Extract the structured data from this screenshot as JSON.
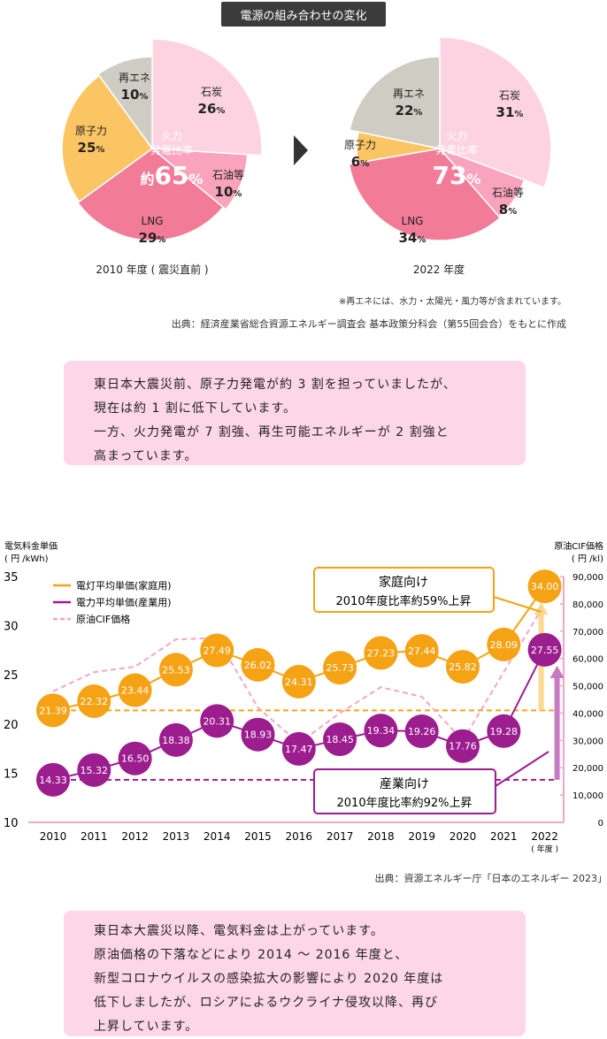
{
  "header": {
    "title": "電源の組み合わせの変化"
  },
  "pies": [
    {
      "caption": "2010 年度 ( 震災直前 )",
      "center_label_1": "火力",
      "center_label_2": "発電比率",
      "center_prefix": "約",
      "center_value": "65",
      "center_unit": "%",
      "slices": [
        {
          "name": "石炭",
          "value": 26,
          "value_label": "26",
          "color": "#fdd3e2"
        },
        {
          "name": "石油等",
          "value": 10,
          "value_label": "10",
          "color": "#f9a3bd"
        },
        {
          "name": "LNG",
          "value": 29,
          "value_label": "29",
          "color": "#f27b98"
        },
        {
          "name": "原子力",
          "value": 25,
          "value_label": "25",
          "color": "#fcc564"
        },
        {
          "name": "再エネ",
          "value": 10,
          "value_label": "10",
          "color": "#cfccc4"
        }
      ]
    },
    {
      "caption": "2022 年度",
      "center_label_1": "火力",
      "center_label_2": "発電比率",
      "center_prefix": "",
      "center_value": "73",
      "center_unit": "%",
      "slices": [
        {
          "name": "石炭",
          "value": 31,
          "value_label": "31",
          "color": "#fdd3e2"
        },
        {
          "name": "石油等",
          "value": 8,
          "value_label": "8",
          "color": "#f9a3bd"
        },
        {
          "name": "LNG",
          "value": 34,
          "value_label": "34",
          "color": "#f27b98"
        },
        {
          "name": "原子力",
          "value": 6,
          "value_label": "6",
          "color": "#fcc564"
        },
        {
          "name": "再エネ",
          "value": 22,
          "value_label": "22",
          "color": "#cfccc4"
        }
      ]
    }
  ],
  "pie_unit": "%",
  "notes": {
    "renewables": "※再エネには、水力・太陽光・風力等が含まれています。",
    "source1": "出典：経済産業省総合資源エネルギー調査会 基本政策分科会（第55回会合）をもとに作成",
    "source2": "出典：資源エネルギー庁「日本のエネルギー 2023」"
  },
  "box1": {
    "lines": [
      "東日本大震災前、原子力発電が約 3 割を担っていましたが、",
      "現在は約 1 割に低下しています。",
      "一方、火力発電が 7 割強、再生可能エネルギーが 2 割強と",
      "高まっています。"
    ]
  },
  "box2": {
    "lines": [
      "東日本大震災以降、電気料金は上がっています。",
      "原油価格の下落などにより 2014 ～ 2016 年度と、",
      "新型コロナウイルスの感染拡大の影響により 2020 年度は",
      "低下しましたが、ロシアによるウクライナ侵攻以降、再び",
      "上昇しています。"
    ]
  },
  "chart_data": {
    "type": "line",
    "ylabel_left_1": "電気料金単価",
    "ylabel_left_2": "( 円 /kWh)",
    "ylabel_right_1": "原油CIF価格",
    "ylabel_right_2": "( 円 /kl)",
    "xunit": "( 年度 )",
    "x": [
      "2010",
      "2011",
      "2012",
      "2013",
      "2014",
      "2015",
      "2016",
      "2017",
      "2018",
      "2019",
      "2020",
      "2021",
      "2022"
    ],
    "ylim_left": [
      10,
      35
    ],
    "yticks_left": [
      "10",
      "15",
      "20",
      "25",
      "30",
      "35"
    ],
    "ylim_right": [
      0,
      90000
    ],
    "yticks_right": [
      "0",
      "10,000",
      "20,000",
      "30,000",
      "40,000",
      "50,000",
      "60,000",
      "70,000",
      "80,000",
      "90,000"
    ],
    "series": [
      {
        "name": "電灯平均単価(家庭用)",
        "color": "#f5a315",
        "values": [
          21.39,
          22.32,
          23.44,
          25.53,
          27.49,
          26.02,
          24.31,
          25.73,
          27.23,
          27.44,
          25.82,
          28.09,
          34.0
        ],
        "labels": [
          "21.39",
          "22.32",
          "23.44",
          "25.53",
          "27.49",
          "26.02",
          "24.31",
          "25.73",
          "27.23",
          "27.44",
          "25.82",
          "28.09",
          "34.00"
        ]
      },
      {
        "name": "電力平均単価(産業用)",
        "color": "#9c1d8e",
        "values": [
          14.33,
          15.32,
          16.5,
          18.38,
          20.31,
          18.93,
          17.47,
          18.45,
          19.34,
          19.26,
          17.76,
          19.28,
          27.55
        ],
        "labels": [
          "14.33",
          "15.32",
          "16.50",
          "18.38",
          "20.31",
          "18.93",
          "17.47",
          "18.45",
          "19.34",
          "19.26",
          "17.76",
          "19.28",
          "27.55"
        ]
      },
      {
        "name": "原油CIF価格",
        "color": "#f5a6c4",
        "values": [
          48000,
          55000,
          57000,
          67000,
          67500,
          42000,
          29000,
          40000,
          49500,
          46000,
          30000,
          55000,
          80000
        ]
      }
    ],
    "callouts": {
      "household_title": "家庭向け",
      "household_text": "2010年度比率約59%上昇",
      "industrial_title": "産業向け",
      "industrial_text": "2010年度比率約92%上昇"
    }
  }
}
